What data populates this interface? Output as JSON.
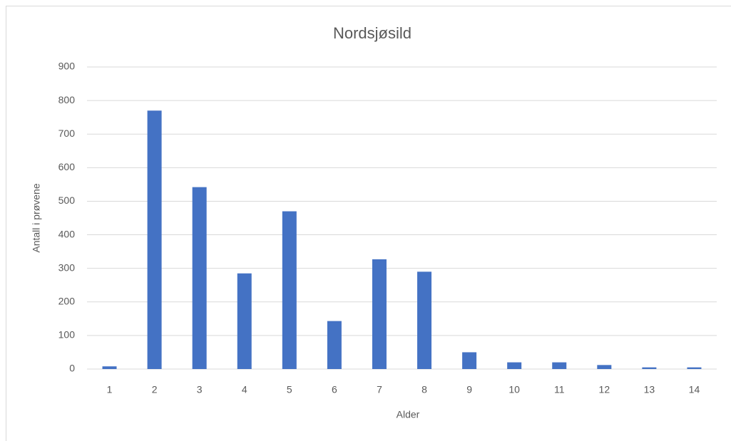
{
  "chart_data": {
    "type": "bar",
    "title": "Nordsjøsild",
    "x_label": "Alder",
    "y_label": "Antall i prøvene",
    "categories": [
      "1",
      "2",
      "3",
      "4",
      "5",
      "6",
      "7",
      "8",
      "9",
      "10",
      "11",
      "12",
      "13",
      "14"
    ],
    "values": [
      8,
      770,
      542,
      285,
      470,
      143,
      327,
      290,
      50,
      20,
      20,
      12,
      5,
      5
    ],
    "color": "#4472c4",
    "ylim": [
      0,
      900
    ],
    "yticks": [
      0,
      100,
      200,
      300,
      400,
      500,
      600,
      700,
      800,
      900
    ],
    "grid": true
  }
}
